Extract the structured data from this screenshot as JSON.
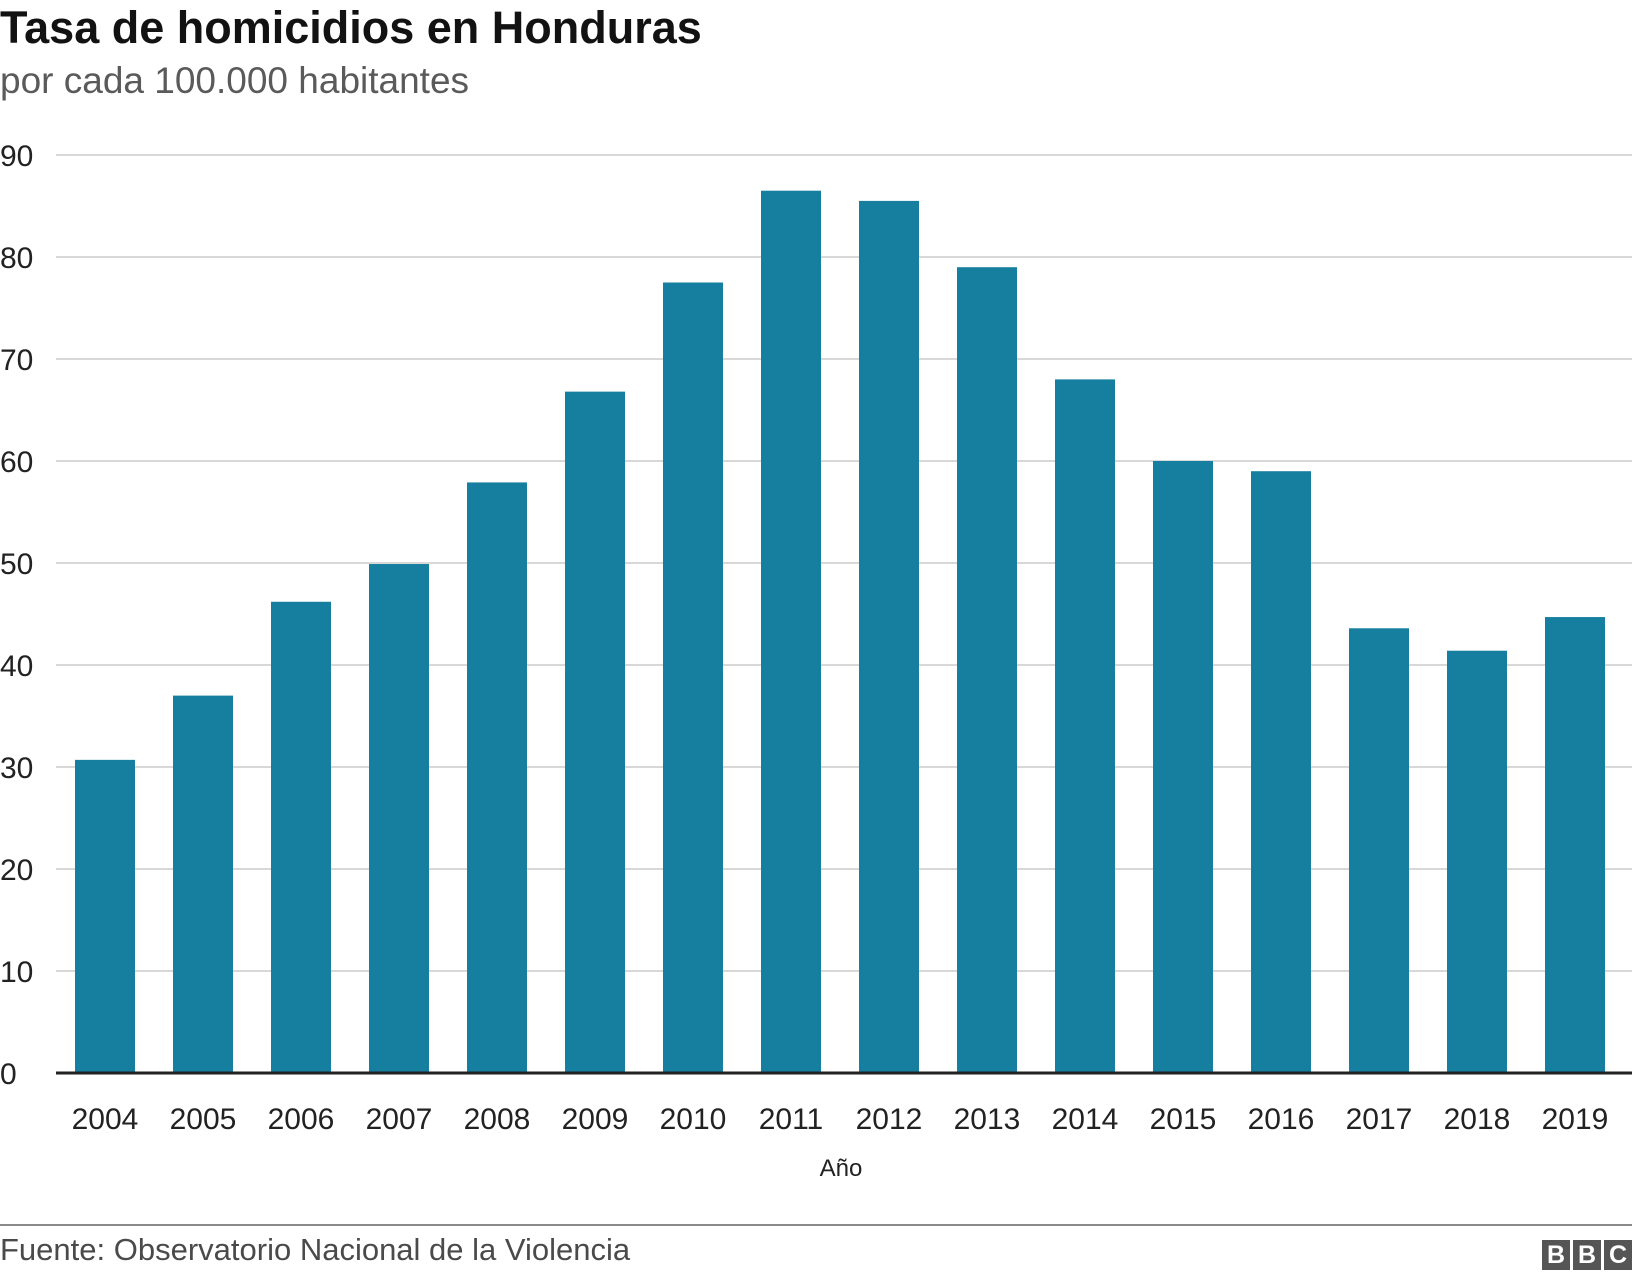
{
  "header": {
    "title": "Tasa de homicidios en Honduras",
    "subtitle": "por cada 100.000 habitantes"
  },
  "footer": {
    "source": "Fuente: Observatorio Nacional de la Violencia",
    "logo_text": "BBC"
  },
  "colors": {
    "bar": "#167fa0",
    "grid": "#cccccc",
    "axis": "#222222"
  },
  "chart_data": {
    "type": "bar",
    "title": "Tasa de homicidios en Honduras",
    "subtitle": "por cada 100.000 habitantes",
    "xlabel": "Año",
    "ylabel": "",
    "categories": [
      "2004",
      "2005",
      "2006",
      "2007",
      "2008",
      "2009",
      "2010",
      "2011",
      "2012",
      "2013",
      "2014",
      "2015",
      "2016",
      "2017",
      "2018",
      "2019"
    ],
    "values": [
      30.7,
      37.0,
      46.2,
      49.9,
      57.9,
      66.8,
      77.5,
      86.5,
      85.5,
      79.0,
      68.0,
      60.0,
      59.0,
      43.6,
      41.4,
      44.7
    ],
    "ylim": [
      0,
      90
    ],
    "yticks": [
      0,
      10,
      20,
      30,
      40,
      50,
      60,
      70,
      80,
      90
    ],
    "grid": true,
    "legend": "none"
  }
}
